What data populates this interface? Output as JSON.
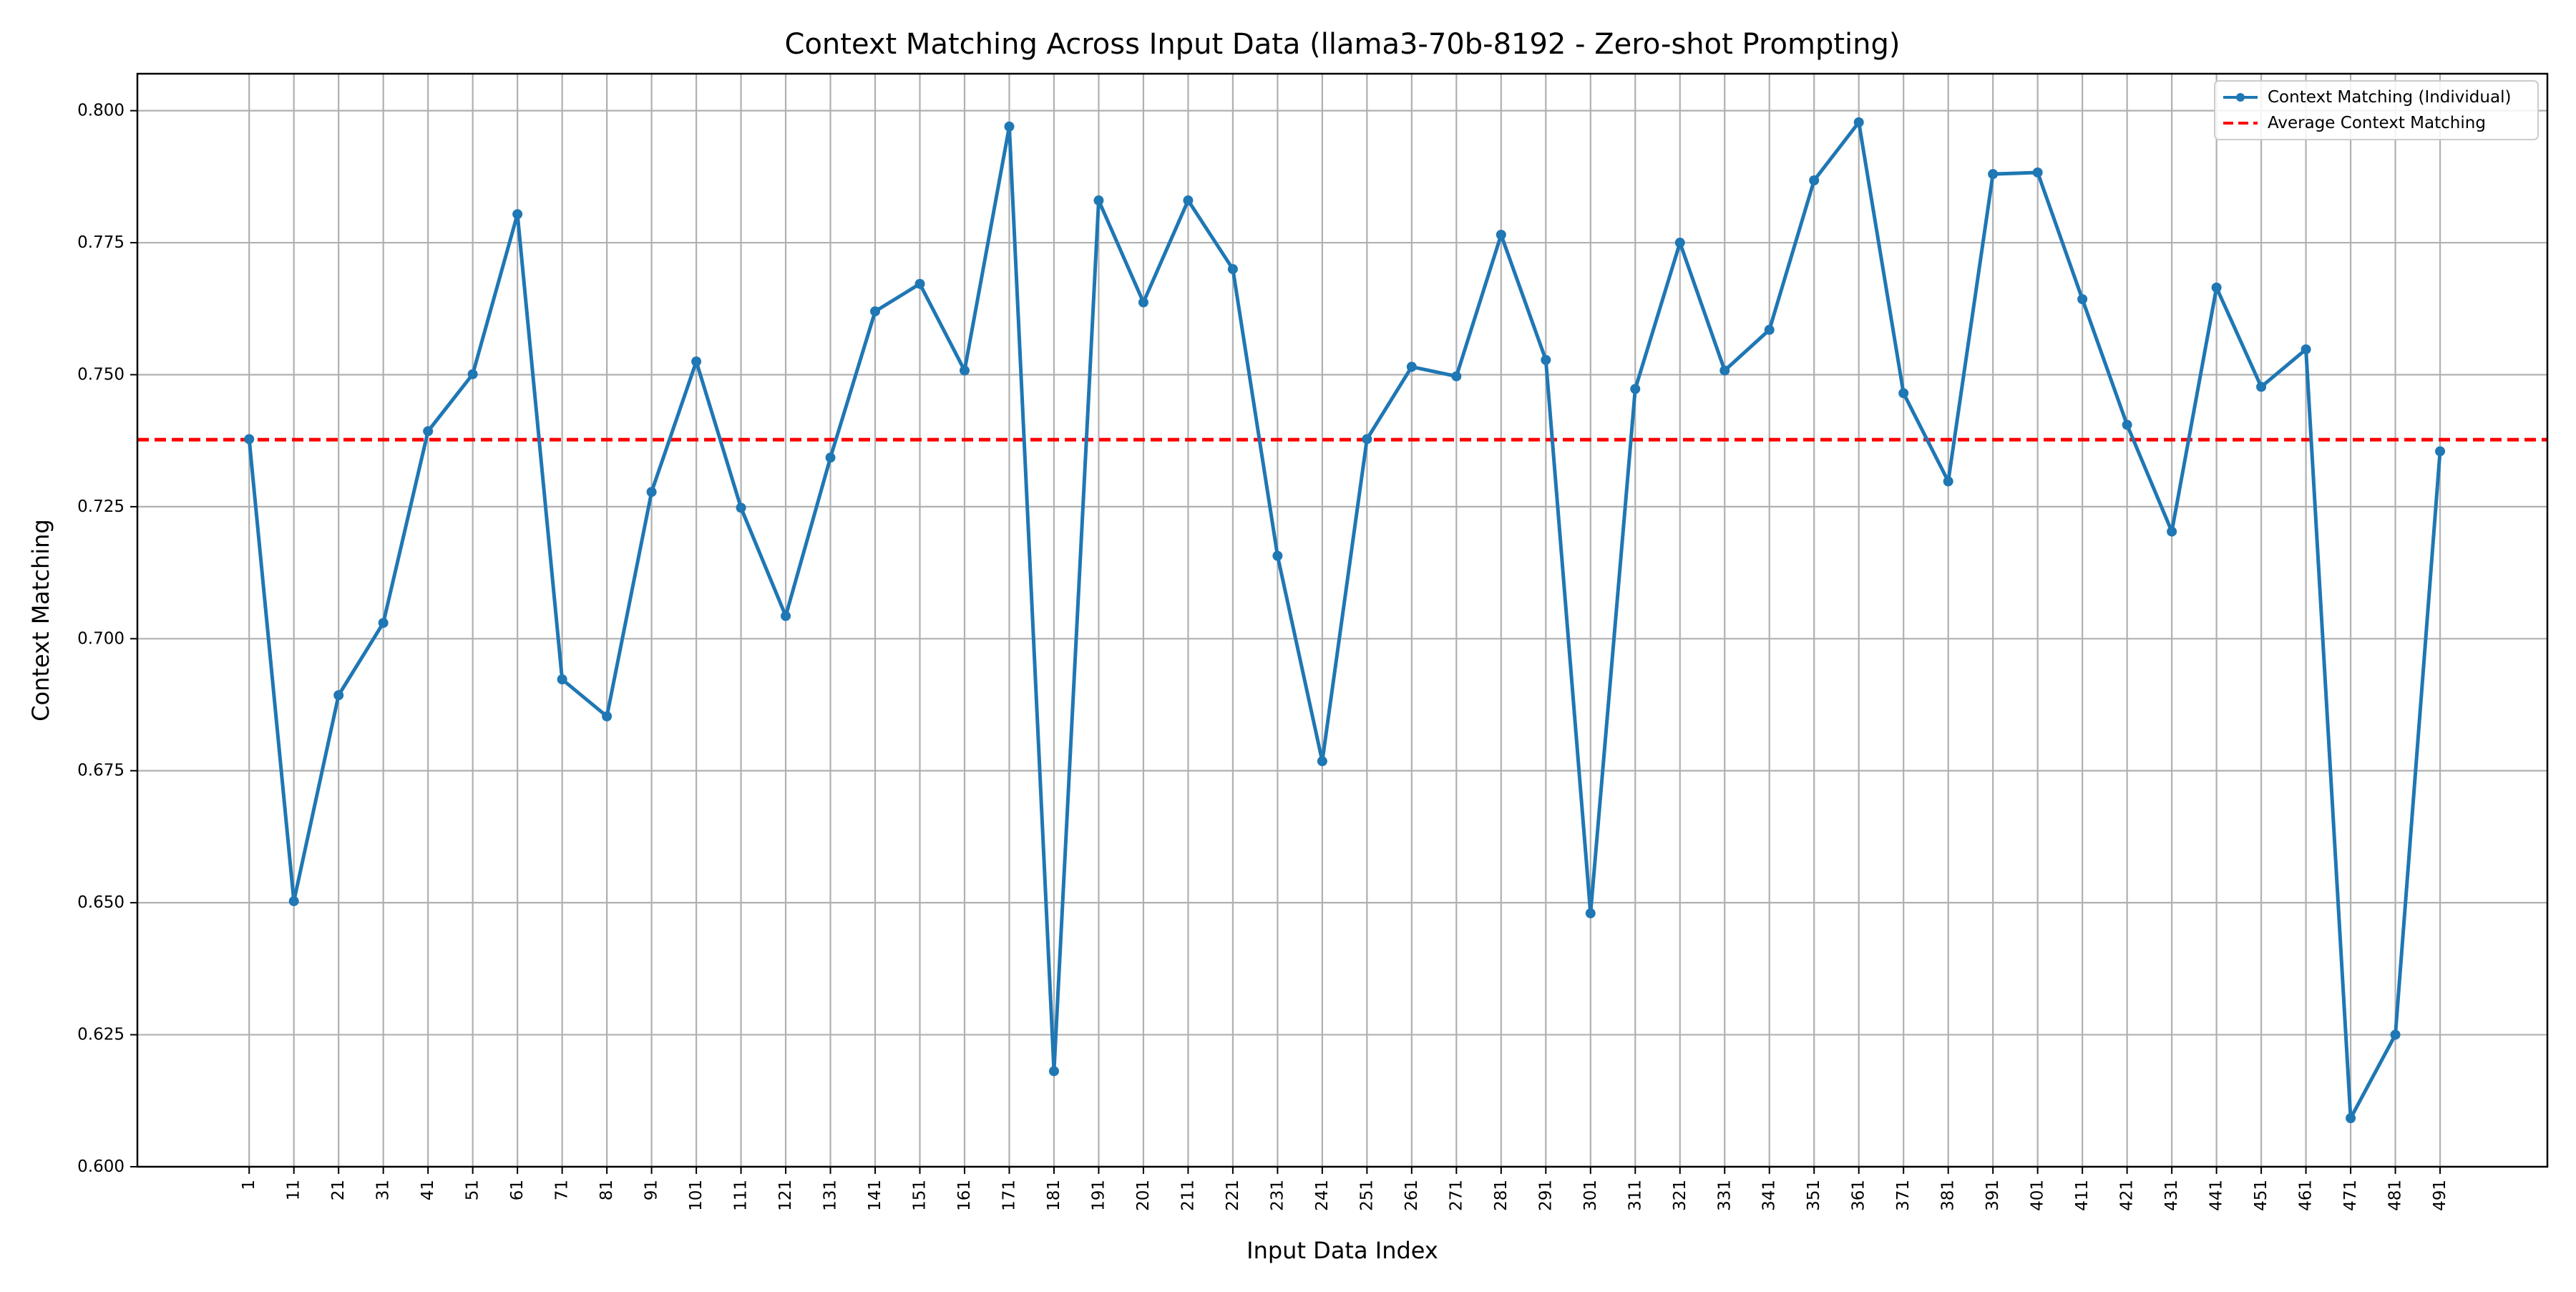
{
  "chart_data": {
    "type": "line",
    "title": "Context Matching Across Input Data (llama3-70b-8192 - Zero-shot Prompting)",
    "xlabel": "Input Data Index",
    "ylabel": "Context Matching",
    "x": [
      1,
      11,
      21,
      31,
      41,
      51,
      61,
      71,
      81,
      91,
      101,
      111,
      121,
      131,
      141,
      151,
      161,
      171,
      181,
      191,
      201,
      211,
      221,
      231,
      241,
      251,
      261,
      271,
      281,
      291,
      301,
      311,
      321,
      331,
      341,
      351,
      361,
      371,
      381,
      391,
      401,
      411,
      421,
      431,
      441,
      451,
      461,
      471,
      481,
      491
    ],
    "xlim": [
      -24,
      515
    ],
    "ylim": [
      0.6,
      0.807
    ],
    "yticks": [
      0.6,
      0.625,
      0.65,
      0.675,
      0.7,
      0.725,
      0.75,
      0.775,
      0.8
    ],
    "ytick_labels": [
      "0.600",
      "0.625",
      "0.650",
      "0.675",
      "0.700",
      "0.725",
      "0.750",
      "0.775",
      "0.800"
    ],
    "xtick_labels": [
      "1",
      "11",
      "21",
      "31",
      "41",
      "51",
      "61",
      "71",
      "81",
      "91",
      "101",
      "111",
      "121",
      "131",
      "141",
      "151",
      "161",
      "171",
      "181",
      "191",
      "201",
      "211",
      "221",
      "231",
      "241",
      "251",
      "261",
      "271",
      "281",
      "291",
      "301",
      "311",
      "321",
      "331",
      "341",
      "351",
      "361",
      "371",
      "381",
      "391",
      "401",
      "411",
      "421",
      "431",
      "441",
      "451",
      "461",
      "471",
      "481",
      "491"
    ],
    "series": [
      {
        "name": "Context Matching (Individual)",
        "color": "#1f77b4",
        "marker": "circle",
        "values": [
          0.7378,
          0.6503,
          0.6893,
          0.703,
          0.7393,
          0.7501,
          0.7804,
          0.6923,
          0.6853,
          0.7278,
          0.7525,
          0.7248,
          0.7043,
          0.7343,
          0.762,
          0.7672,
          0.7508,
          0.797,
          0.6181,
          0.783,
          0.7637,
          0.783,
          0.77,
          0.7157,
          0.6768,
          0.7378,
          0.7515,
          0.7497,
          0.7765,
          0.7528,
          0.648,
          0.7473,
          0.775,
          0.7508,
          0.7585,
          0.7868,
          0.7978,
          0.7465,
          0.7298,
          0.788,
          0.7883,
          0.7643,
          0.7405,
          0.7203,
          0.7665,
          0.7477,
          0.7548,
          0.6092,
          0.625,
          0.7355
        ]
      }
    ],
    "average": {
      "name": "Average Context Matching",
      "value": 0.7377,
      "color": "#ff0000",
      "style": "dashed"
    },
    "grid": true,
    "legend_position": "top-right"
  }
}
